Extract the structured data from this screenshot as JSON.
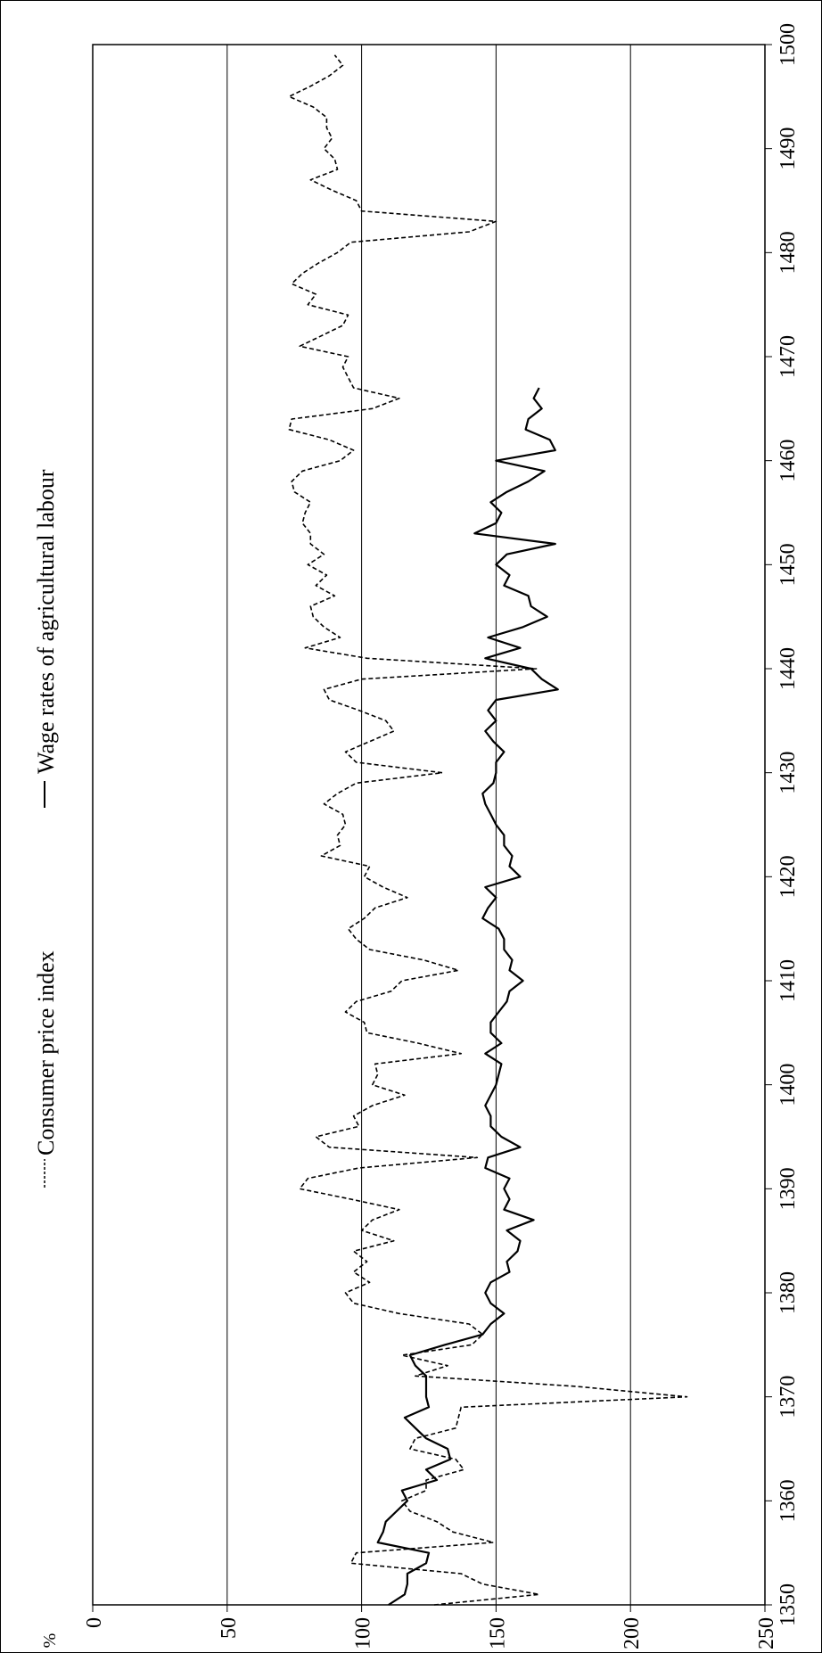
{
  "chart_data": {
    "type": "line",
    "title": "",
    "ylabel": "%",
    "xlabel": "",
    "xlim": [
      1350,
      1500
    ],
    "ylim": [
      0,
      250
    ],
    "x_ticks": [
      1350,
      1360,
      1370,
      1380,
      1390,
      1400,
      1410,
      1420,
      1430,
      1440,
      1450,
      1460,
      1470,
      1480,
      1490,
      1500
    ],
    "y_ticks": [
      0,
      50,
      100,
      150,
      200,
      250
    ],
    "gridlines": [
      50,
      100,
      150,
      200
    ],
    "legend": {
      "placement": "top"
    },
    "series": [
      {
        "name": "Consumer price index",
        "style": "dashed",
        "color": "#000000",
        "points": [
          [
            1350,
            127
          ],
          [
            1351,
            166
          ],
          [
            1352,
            145
          ],
          [
            1353,
            137
          ],
          [
            1354,
            96
          ],
          [
            1355,
            98
          ],
          [
            1356,
            149
          ],
          [
            1357,
            134
          ],
          [
            1358,
            128
          ],
          [
            1359,
            118
          ],
          [
            1360,
            115
          ],
          [
            1361,
            124
          ],
          [
            1362,
            124
          ],
          [
            1363,
            138
          ],
          [
            1364,
            135
          ],
          [
            1365,
            118
          ],
          [
            1366,
            120
          ],
          [
            1367,
            135
          ],
          [
            1368,
            136
          ],
          [
            1369,
            137
          ],
          [
            1370,
            221
          ],
          [
            1371,
            180
          ],
          [
            1372,
            120
          ],
          [
            1373,
            132
          ],
          [
            1374,
            115
          ],
          [
            1375,
            141
          ],
          [
            1376,
            145
          ],
          [
            1377,
            140
          ],
          [
            1378,
            114
          ],
          [
            1379,
            97
          ],
          [
            1380,
            94
          ],
          [
            1381,
            103
          ],
          [
            1382,
            97
          ],
          [
            1383,
            102
          ],
          [
            1384,
            97
          ],
          [
            1385,
            112
          ],
          [
            1386,
            100
          ],
          [
            1387,
            104
          ],
          [
            1388,
            114
          ],
          [
            1389,
            96
          ],
          [
            1390,
            77
          ],
          [
            1391,
            80
          ],
          [
            1392,
            99
          ],
          [
            1393,
            143
          ],
          [
            1394,
            88
          ],
          [
            1395,
            83
          ],
          [
            1396,
            99
          ],
          [
            1397,
            97
          ],
          [
            1398,
            104
          ],
          [
            1399,
            116
          ],
          [
            1400,
            104
          ],
          [
            1401,
            106
          ],
          [
            1402,
            105
          ],
          [
            1403,
            137
          ],
          [
            1404,
            121
          ],
          [
            1405,
            102
          ],
          [
            1406,
            101
          ],
          [
            1407,
            94
          ],
          [
            1408,
            98
          ],
          [
            1409,
            111
          ],
          [
            1410,
            115
          ],
          [
            1411,
            136
          ],
          [
            1412,
            123
          ],
          [
            1413,
            103
          ],
          [
            1414,
            98
          ],
          [
            1415,
            95
          ],
          [
            1416,
            101
          ],
          [
            1417,
            105
          ],
          [
            1418,
            117
          ],
          [
            1419,
            108
          ],
          [
            1420,
            101
          ],
          [
            1421,
            103
          ],
          [
            1422,
            85
          ],
          [
            1423,
            92
          ],
          [
            1424,
            91
          ],
          [
            1425,
            94
          ],
          [
            1426,
            93
          ],
          [
            1427,
            86
          ],
          [
            1428,
            91
          ],
          [
            1429,
            98
          ],
          [
            1430,
            130
          ],
          [
            1431,
            98
          ],
          [
            1432,
            94
          ],
          [
            1433,
            103
          ],
          [
            1434,
            112
          ],
          [
            1435,
            109
          ],
          [
            1436,
            99
          ],
          [
            1437,
            88
          ],
          [
            1438,
            86
          ],
          [
            1439,
            100
          ],
          [
            1440,
            165
          ],
          [
            1441,
            102
          ],
          [
            1442,
            79
          ],
          [
            1443,
            92
          ],
          [
            1444,
            86
          ],
          [
            1445,
            82
          ],
          [
            1446,
            81
          ],
          [
            1447,
            90
          ],
          [
            1448,
            83
          ],
          [
            1449,
            87
          ],
          [
            1450,
            80
          ],
          [
            1451,
            86
          ],
          [
            1452,
            81
          ],
          [
            1453,
            81
          ],
          [
            1454,
            78
          ],
          [
            1455,
            79
          ],
          [
            1456,
            81
          ],
          [
            1457,
            75
          ],
          [
            1458,
            74
          ],
          [
            1459,
            78
          ],
          [
            1460,
            92
          ],
          [
            1461,
            97
          ],
          [
            1462,
            88
          ],
          [
            1463,
            73
          ],
          [
            1464,
            74
          ],
          [
            1465,
            104
          ],
          [
            1466,
            114
          ],
          [
            1467,
            97
          ],
          [
            1468,
            95
          ],
          [
            1469,
            93
          ],
          [
            1470,
            95
          ],
          [
            1471,
            77
          ],
          [
            1472,
            85
          ],
          [
            1473,
            93
          ],
          [
            1474,
            95
          ],
          [
            1475,
            80
          ],
          [
            1476,
            83
          ],
          [
            1477,
            74
          ],
          [
            1478,
            78
          ],
          [
            1479,
            84
          ],
          [
            1480,
            91
          ],
          [
            1481,
            96
          ],
          [
            1482,
            140
          ],
          [
            1483,
            150
          ],
          [
            1484,
            100
          ],
          [
            1485,
            98
          ],
          [
            1486,
            89
          ],
          [
            1487,
            81
          ],
          [
            1488,
            91
          ],
          [
            1489,
            90
          ],
          [
            1490,
            86
          ],
          [
            1491,
            89
          ],
          [
            1492,
            87
          ],
          [
            1493,
            87
          ],
          [
            1494,
            82
          ],
          [
            1495,
            73
          ],
          [
            1496,
            81
          ],
          [
            1497,
            88
          ],
          [
            1498,
            93
          ],
          [
            1499,
            90
          ]
        ]
      },
      {
        "name": "Wage rates of agricultural labour",
        "style": "solid",
        "color": "#000000",
        "points": [
          [
            1350,
            110
          ],
          [
            1351,
            116
          ],
          [
            1352,
            117
          ],
          [
            1353,
            117
          ],
          [
            1354,
            124
          ],
          [
            1355,
            125
          ],
          [
            1356,
            106
          ],
          [
            1357,
            108
          ],
          [
            1358,
            109
          ],
          [
            1359,
            113
          ],
          [
            1360,
            117
          ],
          [
            1361,
            115
          ],
          [
            1362,
            128
          ],
          [
            1363,
            124
          ],
          [
            1364,
            133
          ],
          [
            1365,
            132
          ],
          [
            1366,
            124
          ],
          [
            1367,
            120
          ],
          [
            1368,
            116
          ],
          [
            1369,
            125
          ],
          [
            1370,
            124
          ],
          [
            1371,
            124
          ],
          [
            1372,
            124
          ],
          [
            1373,
            120
          ],
          [
            1374,
            118
          ],
          [
            1375,
            131
          ],
          [
            1376,
            145
          ],
          [
            1377,
            148
          ],
          [
            1378,
            153
          ],
          [
            1379,
            148
          ],
          [
            1380,
            146
          ],
          [
            1381,
            148
          ],
          [
            1382,
            155
          ],
          [
            1383,
            154
          ],
          [
            1384,
            158
          ],
          [
            1385,
            159
          ],
          [
            1386,
            154
          ],
          [
            1387,
            164
          ],
          [
            1388,
            153
          ],
          [
            1389,
            155
          ],
          [
            1390,
            153
          ],
          [
            1391,
            155
          ],
          [
            1392,
            146
          ],
          [
            1393,
            147
          ],
          [
            1394,
            159
          ],
          [
            1395,
            152
          ],
          [
            1396,
            148
          ],
          [
            1397,
            148
          ],
          [
            1398,
            146
          ],
          [
            1399,
            148
          ],
          [
            1400,
            150
          ],
          [
            1401,
            151
          ],
          [
            1402,
            152
          ],
          [
            1403,
            146
          ],
          [
            1404,
            152
          ],
          [
            1405,
            148
          ],
          [
            1406,
            148
          ],
          [
            1407,
            151
          ],
          [
            1408,
            154
          ],
          [
            1409,
            155
          ],
          [
            1410,
            160
          ],
          [
            1411,
            155
          ],
          [
            1412,
            156
          ],
          [
            1413,
            153
          ],
          [
            1414,
            153
          ],
          [
            1415,
            151
          ],
          [
            1416,
            145
          ],
          [
            1417,
            147
          ],
          [
            1418,
            150
          ],
          [
            1419,
            146
          ],
          [
            1420,
            159
          ],
          [
            1421,
            155
          ],
          [
            1422,
            156
          ],
          [
            1423,
            153
          ],
          [
            1424,
            153
          ],
          [
            1425,
            150
          ],
          [
            1426,
            148
          ],
          [
            1427,
            146
          ],
          [
            1428,
            145
          ],
          [
            1429,
            149
          ],
          [
            1430,
            150
          ],
          [
            1431,
            150
          ],
          [
            1432,
            153
          ],
          [
            1433,
            149
          ],
          [
            1434,
            146
          ],
          [
            1435,
            150
          ],
          [
            1436,
            147
          ],
          [
            1437,
            150
          ],
          [
            1438,
            173
          ],
          [
            1439,
            167
          ],
          [
            1440,
            163
          ],
          [
            1441,
            146
          ],
          [
            1442,
            159
          ],
          [
            1443,
            147
          ],
          [
            1444,
            160
          ],
          [
            1445,
            169
          ],
          [
            1446,
            163
          ],
          [
            1447,
            162
          ],
          [
            1448,
            153
          ],
          [
            1449,
            155
          ],
          [
            1450,
            150
          ],
          [
            1451,
            154
          ],
          [
            1452,
            172
          ],
          [
            1453,
            142
          ],
          [
            1454,
            150
          ],
          [
            1455,
            152
          ],
          [
            1456,
            148
          ],
          [
            1457,
            154
          ],
          [
            1458,
            162
          ],
          [
            1459,
            168
          ],
          [
            1460,
            150
          ],
          [
            1461,
            172
          ],
          [
            1462,
            170
          ],
          [
            1463,
            161
          ],
          [
            1464,
            162
          ],
          [
            1465,
            167
          ],
          [
            1466,
            164
          ],
          [
            1467,
            166
          ]
        ]
      }
    ]
  }
}
